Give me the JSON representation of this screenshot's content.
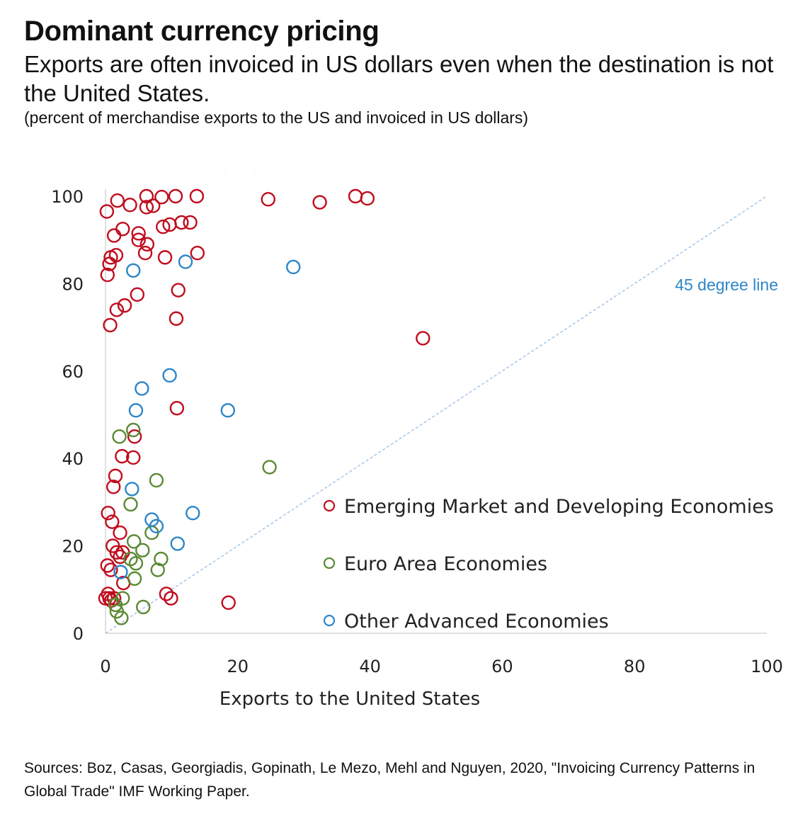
{
  "title": "Dominant currency pricing",
  "subtitle": "Exports are often invoiced in US dollars even when the destination is not the United States.",
  "note": "(percent of merchandise exports to the US and invoiced in US dollars)",
  "source": "Sources: Boz, Casas, Georgiadis, Gopinath, Le Mezo, Mehl and Nguyen, 2020, \"Invoicing Currency Patterns in Global Trade\" IMF Working Paper.",
  "chart_data": {
    "type": "scatter",
    "title": "Dominant currency pricing",
    "xlabel": "Exports to the United States",
    "ylabel": "",
    "xlim": [
      0,
      100
    ],
    "ylim": [
      0,
      100
    ],
    "x_ticks": [
      0,
      20,
      40,
      60,
      80,
      100
    ],
    "y_ticks": [
      0,
      20,
      40,
      60,
      80,
      100
    ],
    "grid": false,
    "legend_position": "bottom-right",
    "annotation": {
      "text": "45 degree line",
      "color": "#2e86c8"
    },
    "reference_line": {
      "label": "45 degree line",
      "from": [
        0,
        0
      ],
      "to": [
        100,
        100
      ],
      "color": "#aac8ea"
    },
    "series": [
      {
        "name": "Emerging Market and Developing Economies",
        "color": "#c00d1e",
        "points": [
          [
            0.2,
            96.5
          ],
          [
            1.8,
            99
          ],
          [
            3.7,
            98
          ],
          [
            6.2,
            100
          ],
          [
            6.2,
            97.5
          ],
          [
            7.2,
            97.8
          ],
          [
            8.5,
            99.8
          ],
          [
            10.6,
            100
          ],
          [
            13.8,
            100
          ],
          [
            24.6,
            99.3
          ],
          [
            32.4,
            98.6
          ],
          [
            37.8,
            100
          ],
          [
            39.6,
            99.5
          ],
          [
            1.3,
            91
          ],
          [
            2.6,
            92.5
          ],
          [
            5,
            91.5
          ],
          [
            5,
            90
          ],
          [
            6.3,
            89
          ],
          [
            8.7,
            93
          ],
          [
            9.7,
            93.5
          ],
          [
            11.5,
            94
          ],
          [
            12.8,
            94
          ],
          [
            0.8,
            86
          ],
          [
            1.6,
            86.5
          ],
          [
            0.6,
            84.5
          ],
          [
            6,
            87
          ],
          [
            9,
            86
          ],
          [
            13.9,
            87
          ],
          [
            0.3,
            82
          ],
          [
            4.8,
            77.5
          ],
          [
            11,
            78.5
          ],
          [
            1.7,
            74
          ],
          [
            2.9,
            75
          ],
          [
            10.7,
            72
          ],
          [
            0.7,
            70.5
          ],
          [
            48,
            67.5
          ],
          [
            10.8,
            51.5
          ],
          [
            4.4,
            45
          ],
          [
            2.5,
            40.5
          ],
          [
            4.2,
            40.2
          ],
          [
            1.5,
            36
          ],
          [
            1.2,
            33.5
          ],
          [
            0.4,
            27.5
          ],
          [
            1,
            25.5
          ],
          [
            2.2,
            23
          ],
          [
            1.1,
            20
          ],
          [
            1.7,
            18.5
          ],
          [
            2.6,
            18.5
          ],
          [
            2.2,
            17.5
          ],
          [
            0.3,
            15.5
          ],
          [
            0.8,
            14.5
          ],
          [
            2.7,
            11.5
          ],
          [
            0,
            8
          ],
          [
            0.6,
            8
          ],
          [
            1.3,
            8
          ],
          [
            0.4,
            9
          ],
          [
            0.9,
            7.5
          ],
          [
            9.2,
            9
          ],
          [
            9.9,
            8
          ],
          [
            18.6,
            7
          ]
        ]
      },
      {
        "name": "Euro Area Economies",
        "color": "#5a8a34",
        "points": [
          [
            4.2,
            46.5
          ],
          [
            2.1,
            45
          ],
          [
            7.7,
            35
          ],
          [
            24.8,
            38
          ],
          [
            3.8,
            29.5
          ],
          [
            7,
            23
          ],
          [
            4.3,
            21
          ],
          [
            5.6,
            19
          ],
          [
            3.8,
            17
          ],
          [
            4.6,
            16
          ],
          [
            8.4,
            17
          ],
          [
            7.9,
            14.5
          ],
          [
            4.4,
            12.5
          ],
          [
            2.6,
            8
          ],
          [
            1.5,
            6.5
          ],
          [
            1.7,
            5
          ],
          [
            5.7,
            6
          ],
          [
            2.4,
            3.5
          ]
        ]
      },
      {
        "name": "Other Advanced Economies",
        "color": "#2e86c8",
        "points": [
          [
            4.2,
            83
          ],
          [
            12.1,
            85
          ],
          [
            28.4,
            83.8
          ],
          [
            9.7,
            59
          ],
          [
            5.5,
            56
          ],
          [
            4.6,
            51
          ],
          [
            18.5,
            51
          ],
          [
            4,
            33
          ],
          [
            13.2,
            27.5
          ],
          [
            7,
            26
          ],
          [
            7.7,
            24.5
          ],
          [
            10.9,
            20.5
          ],
          [
            2.3,
            14
          ]
        ]
      }
    ]
  }
}
